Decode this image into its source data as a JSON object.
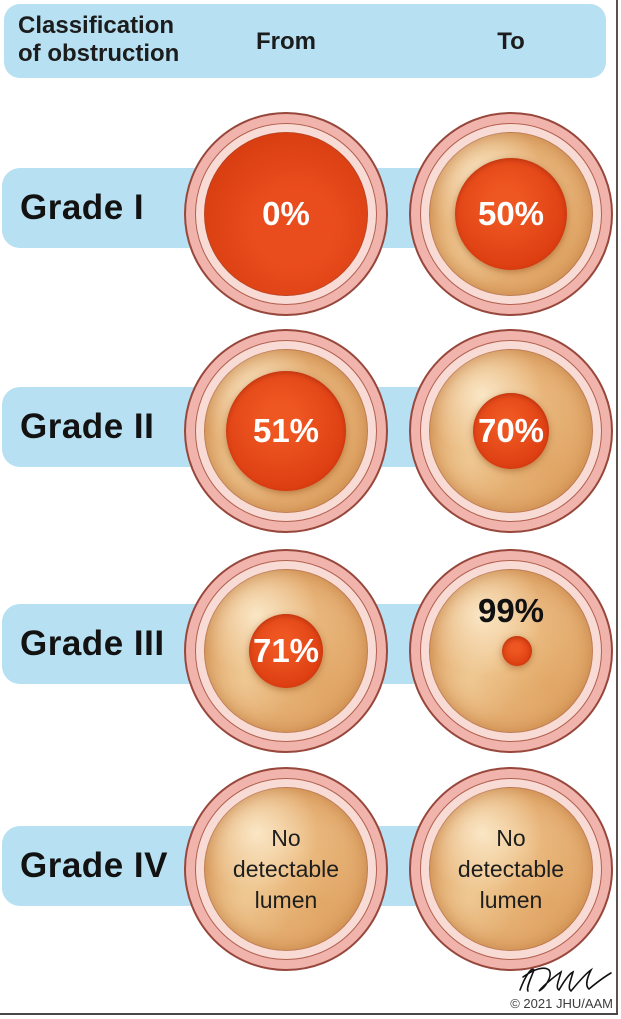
{
  "header": {
    "title_line1": "Classification",
    "title_line2": "of obstruction",
    "col_from": "From",
    "col_to": "To"
  },
  "rows": [
    {
      "grade": "Grade I",
      "cells": [
        {
          "column": "From",
          "label": "0%",
          "obstruction_pct": 0,
          "plaque": false,
          "lumen_diameter": 163,
          "label_style": "white-center"
        },
        {
          "column": "To",
          "label": "50%",
          "obstruction_pct": 50,
          "plaque": true,
          "lumen_diameter": 112,
          "label_style": "white-center"
        }
      ]
    },
    {
      "grade": "Grade II",
      "cells": [
        {
          "column": "From",
          "label": "51%",
          "obstruction_pct": 51,
          "plaque": true,
          "lumen_diameter": 120,
          "label_style": "white-center"
        },
        {
          "column": "To",
          "label": "70%",
          "obstruction_pct": 70,
          "plaque": true,
          "lumen_diameter": 76,
          "label_style": "white-center"
        }
      ]
    },
    {
      "grade": "Grade III",
      "cells": [
        {
          "column": "From",
          "label": "71%",
          "obstruction_pct": 71,
          "plaque": true,
          "lumen_diameter": 74,
          "label_style": "white-center"
        },
        {
          "column": "To",
          "label": "99%",
          "obstruction_pct": 99,
          "plaque": true,
          "lumen_diameter": 30,
          "label_style": "black-top"
        }
      ]
    },
    {
      "grade": "Grade IV",
      "cells": [
        {
          "column": "From",
          "label": "No\ndetectable\nlumen",
          "plaque": true,
          "lumen_diameter": 0,
          "label_style": "no-lumen"
        },
        {
          "column": "To",
          "label": "No\ndetectable\nlumen",
          "plaque": true,
          "lumen_diameter": 0,
          "label_style": "no-lumen"
        }
      ]
    }
  ],
  "footer": {
    "signature": "T.Phelps",
    "copyright": "© 2021 JHU/AAM"
  },
  "colors": {
    "band_blue": "#b7e1f2",
    "vessel_wall_pink": "#f0b4ac",
    "vessel_inner_pink": "#f8dbd5",
    "vessel_outline_brown": "#97473b",
    "lumen_red": "#dd3f12",
    "plaque_tan": "#e3ab6f",
    "text_dark": "#1c1c1c",
    "percent_white": "#ffffff"
  }
}
